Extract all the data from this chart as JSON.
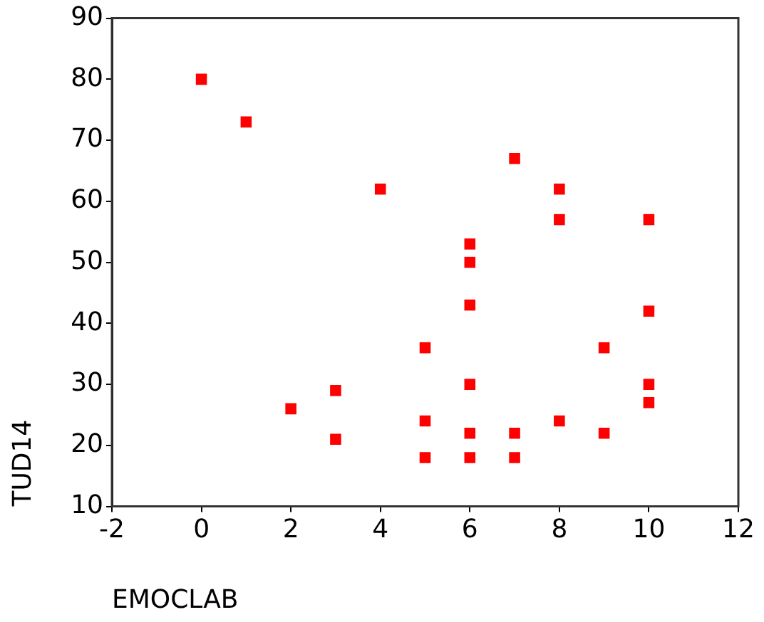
{
  "chart_data": {
    "type": "scatter",
    "xlabel": "EMOCLAB",
    "ylabel": "TUD14",
    "x": [
      0,
      1,
      2,
      3,
      3,
      4,
      5,
      5,
      5,
      6,
      6,
      6,
      6,
      6,
      6,
      7,
      7,
      7,
      8,
      8,
      8,
      9,
      9,
      10,
      10,
      10,
      10
    ],
    "values": [
      80,
      73,
      26,
      29,
      21,
      62,
      36,
      24,
      18,
      53,
      50,
      43,
      30,
      22,
      18,
      67,
      22,
      18,
      62,
      57,
      24,
      36,
      22,
      57,
      42,
      30,
      27
    ],
    "color": "#ff0000",
    "marker": "square",
    "xlim": [
      -2,
      12
    ],
    "xticks": [
      -2,
      0,
      2,
      4,
      6,
      8,
      10,
      12
    ],
    "ylim": [
      10,
      90
    ],
    "yticks": [
      10,
      20,
      30,
      40,
      50,
      60,
      70,
      80,
      90
    ],
    "grid": false,
    "legend": false
  }
}
